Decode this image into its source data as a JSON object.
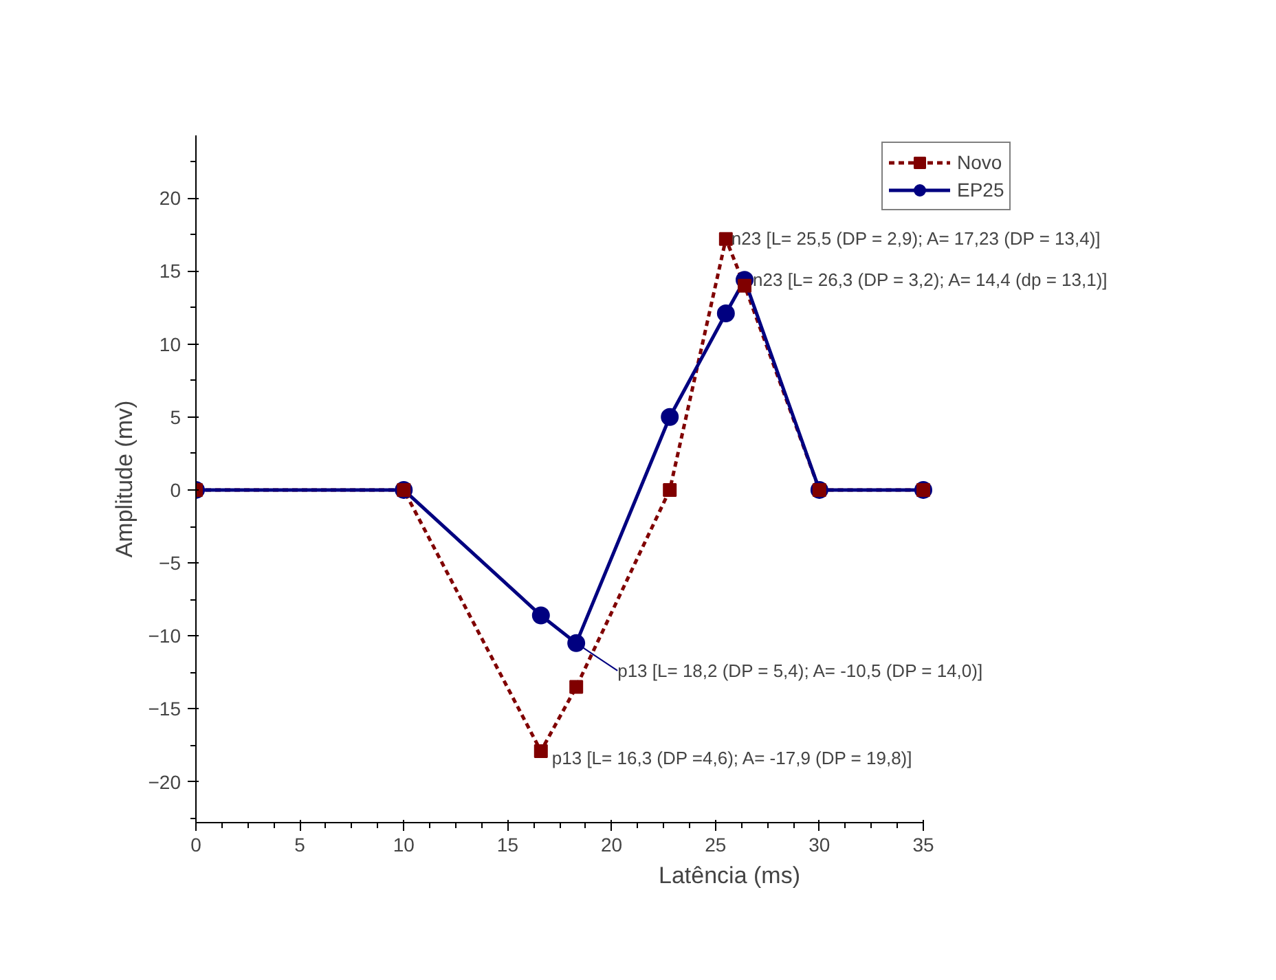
{
  "chart_data": {
    "type": "line",
    "xlabel": "Latência (ms)",
    "ylabel": "Amplitude (mv)",
    "xlim": [
      0,
      35
    ],
    "ylim": [
      -22.8,
      24.3
    ],
    "xticks": [
      0,
      5,
      10,
      15,
      20,
      25,
      30,
      35
    ],
    "yticks": [
      -20,
      -15,
      -10,
      -5,
      0,
      5,
      10,
      15,
      20
    ],
    "grid": false,
    "legend": "top right",
    "series": [
      {
        "name": "Novo",
        "color": "#800000",
        "line_style": "dashed",
        "marker": "square",
        "x": [
          0,
          10,
          16.6,
          18.3,
          22.8,
          25.5,
          26.4,
          30,
          35
        ],
        "values": [
          0,
          0,
          -17.9,
          -13.5,
          0,
          17.2,
          14.0,
          0,
          0
        ]
      },
      {
        "name": "EP25",
        "color": "#000080",
        "line_style": "solid",
        "marker": "circle",
        "x": [
          0,
          10,
          16.6,
          18.3,
          22.8,
          25.5,
          26.4,
          30,
          35
        ],
        "values": [
          0,
          0,
          -8.6,
          -10.5,
          5.0,
          12.1,
          14.4,
          0,
          0
        ]
      }
    ],
    "annotations": [
      {
        "text": "n23 [L= 25,5 (DP = 2,9); A= 17,23 (DP = 13,4)]",
        "x": 25.5,
        "y": 17.23
      },
      {
        "text": "n23 [L= 26,3 (DP = 3,2); A= 14,4 (dp = 13,1)]",
        "x": 26.4,
        "y": 14.4
      },
      {
        "text": "p13 [L= 18,2 (DP = 5,4); A= -10,5 (DP = 14,0)]",
        "x": 18.3,
        "y": -10.5
      },
      {
        "text": "p13 [L= 16,3 (DP =4,6); A= -17,9 (DP = 19,8)]",
        "x": 16.6,
        "y": -17.9
      }
    ]
  }
}
